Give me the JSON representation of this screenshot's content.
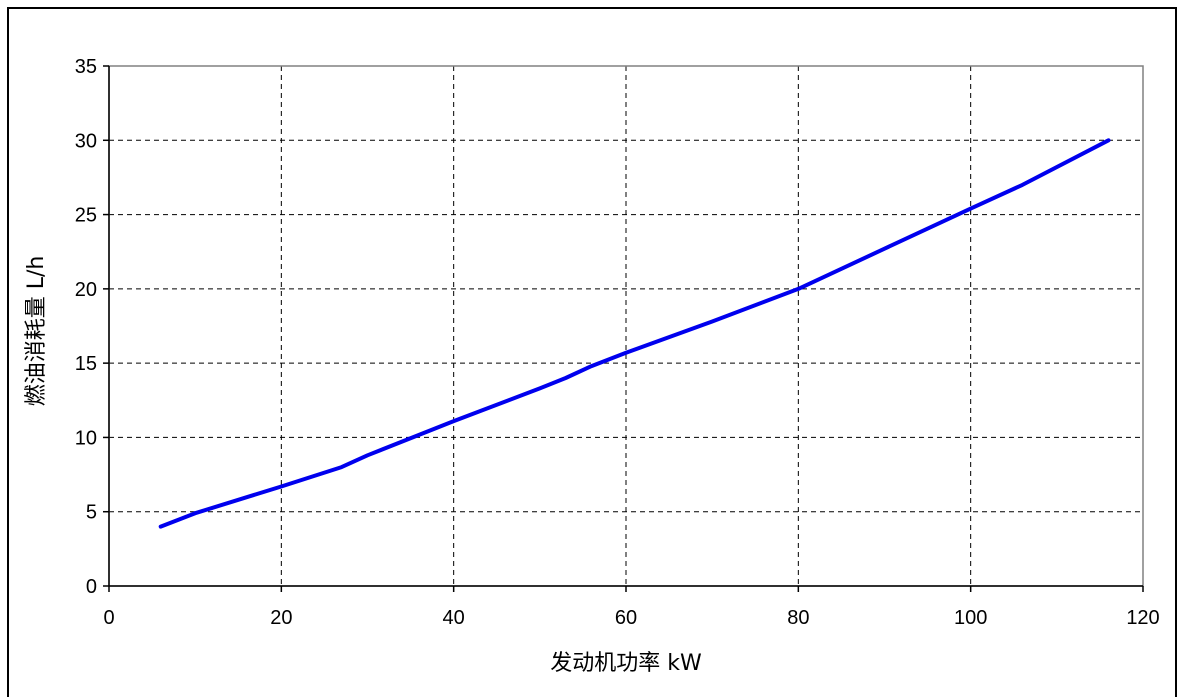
{
  "chart_data": {
    "type": "line",
    "title": "",
    "xlabel": "发动机功率 kW",
    "ylabel": "燃油消耗量 L/h",
    "xlim": [
      0,
      120
    ],
    "ylim": [
      0,
      35
    ],
    "xticks": [
      "0",
      "20",
      "40",
      "60",
      "80",
      "100",
      "120"
    ],
    "yticks": [
      "0",
      "5",
      "10",
      "15",
      "20",
      "25",
      "30",
      "35"
    ],
    "grid": true,
    "grid_style": "dashed",
    "legend": "none",
    "series": [
      {
        "color": "#0000ee",
        "x": [
          6,
          10,
          20,
          27,
          30,
          40,
          50,
          53,
          56,
          60,
          70,
          80,
          90,
          100,
          106,
          116
        ],
        "y": [
          4.0,
          4.9,
          6.7,
          8.0,
          8.8,
          11.1,
          13.3,
          14.0,
          14.8,
          15.7,
          17.8,
          20.0,
          22.7,
          25.4,
          27.0,
          30.0
        ]
      }
    ]
  }
}
